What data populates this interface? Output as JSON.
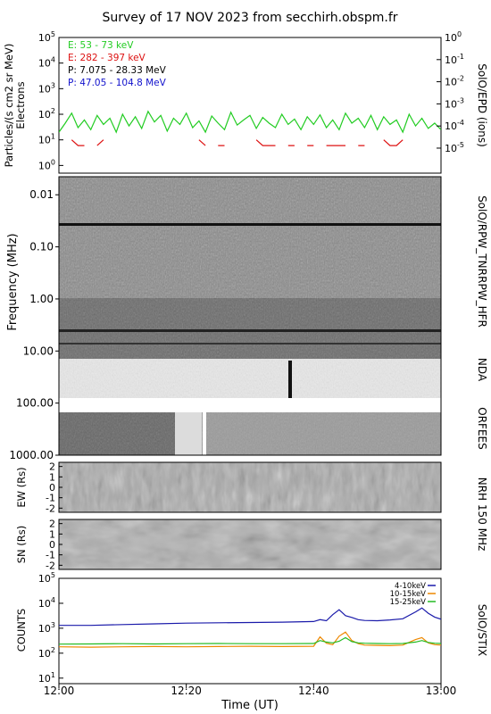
{
  "title": "Survey of 17 NOV 2023 from secchirh.obspm.fr",
  "x_axis": {
    "label": "Time (UT)",
    "range": [
      "12:00",
      "13:00"
    ],
    "ticks": [
      "12:00",
      "12:20",
      "12:40",
      "13:00"
    ]
  },
  "chart_data": [
    {
      "type": "line",
      "panel": "epd",
      "ylabel_lines": [
        "Particles/(s cm2 sr MeV)",
        "Electrons"
      ],
      "right_label": "SolO/EPD (ions)",
      "y_scale": "log",
      "ylim": [
        0.5,
        100000
      ],
      "yticks": [
        "10^0",
        "10^1",
        "10^2",
        "10^3",
        "10^4",
        "10^5"
      ],
      "right_scale": "log",
      "right_ylim": [
        7.4e-07,
        1
      ],
      "right_yticks": [
        "10^-5",
        "10^-4",
        "10^-3",
        "10^-2",
        "10^-1",
        "10^0"
      ],
      "legend": [
        {
          "label": "E: 53 - 73 keV",
          "color": "#22cc22"
        },
        {
          "label": "E: 282 - 397 keV",
          "color": "#dd1111"
        },
        {
          "label": "P: 7.075 - 28.33 MeV",
          "color": "#000000"
        },
        {
          "label": "P: 47.05 - 104.8 MeV",
          "color": "#1111cc"
        }
      ],
      "series": [
        {
          "name": "E: 53 - 73 keV",
          "color": "#22cc22",
          "x_minutes": [
            0,
            1,
            2,
            3,
            4,
            5,
            6,
            7,
            8,
            9,
            10,
            11,
            12,
            13,
            14,
            15,
            16,
            17,
            18,
            19,
            20,
            21,
            22,
            23,
            24,
            25,
            26,
            27,
            28,
            29,
            30,
            31,
            32,
            33,
            34,
            35,
            36,
            37,
            38,
            39,
            40,
            41,
            42,
            43,
            44,
            45,
            46,
            47,
            48,
            49,
            50,
            51,
            52,
            53,
            54,
            55,
            56,
            57,
            58,
            59,
            60
          ],
          "values": [
            20,
            45,
            110,
            30,
            60,
            25,
            90,
            40,
            70,
            20,
            100,
            35,
            80,
            28,
            130,
            50,
            90,
            22,
            70,
            40,
            110,
            30,
            55,
            20,
            85,
            45,
            25,
            120,
            38,
            60,
            90,
            28,
            75,
            45,
            30,
            100,
            40,
            65,
            25,
            80,
            40,
            95,
            30,
            60,
            25,
            110,
            45,
            70,
            30,
            90,
            25,
            80,
            40,
            60,
            20,
            100,
            35,
            70,
            28,
            45,
            25
          ]
        },
        {
          "name": "E: 282 - 397 keV",
          "color": "#dd1111",
          "x_minutes": [
            2,
            3,
            4,
            6,
            7,
            22,
            23,
            25,
            26,
            31,
            32,
            33,
            34,
            36,
            37,
            39,
            40,
            42,
            43,
            44,
            45,
            47,
            48,
            51,
            52,
            53,
            54,
            56,
            57,
            58
          ],
          "values": [
            10,
            6,
            6,
            6,
            10,
            10,
            6,
            6,
            6,
            10,
            6,
            6,
            6,
            6,
            6,
            6,
            6,
            6,
            6,
            6,
            6,
            6,
            6,
            10,
            6,
            6,
            10,
            null,
            null,
            null
          ]
        }
      ]
    },
    {
      "type": "heatmap",
      "panel": "radio-spectrum",
      "ylabel": "Frequency (MHz)",
      "y_scale": "log",
      "ylim": [
        0.0045,
        1000
      ],
      "yticks": [
        "0.01",
        "0.10",
        "1.00",
        "10.00",
        "100.00",
        "1000.00"
      ],
      "right_labels": [
        "SolO/RPW_TNR",
        "RPW_HFR",
        "NDA",
        "ORFEES"
      ],
      "features": [
        {
          "band": "SolO/RPW_TNR",
          "freq_mhz": 0.033,
          "start": "12:00",
          "end": "13:00",
          "note": "persistent dark line"
        },
        {
          "band": "NDA",
          "freq_mhz": 25,
          "time": "12:36",
          "note": "dark vertical spike"
        },
        {
          "band": "ORFEES",
          "time": "12:23",
          "note": "white data gap"
        }
      ]
    },
    {
      "type": "heatmap",
      "panel": "nrh-ew",
      "ylabel": "EW (Rs)",
      "right_label": "NRH 150 MHz",
      "ylim": [
        -2.4,
        2.4
      ],
      "yticks": [
        "-2",
        "-1",
        "0",
        "1",
        "2"
      ]
    },
    {
      "type": "heatmap",
      "panel": "nrh-sn",
      "ylabel": "SN (Rs)",
      "ylim": [
        -2.4,
        2.4
      ],
      "yticks": [
        "-2",
        "-1",
        "0",
        "1",
        "2"
      ]
    },
    {
      "type": "line",
      "panel": "stix",
      "ylabel": "COUNTS",
      "right_label": "SolO/STIX",
      "y_scale": "log",
      "ylim": [
        6,
        100000
      ],
      "yticks": [
        "10^1",
        "10^2",
        "10^3",
        "10^4",
        "10^5"
      ],
      "legend": [
        {
          "label": "4-10keV",
          "color": "#1a1aaa"
        },
        {
          "label": "10-15keV",
          "color": "#ee8800"
        },
        {
          "label": "15-25keV",
          "color": "#22bb22"
        }
      ],
      "series": [
        {
          "name": "4-10keV",
          "color": "#1a1aaa",
          "x_minutes": [
            0,
            5,
            10,
            15,
            20,
            25,
            30,
            35,
            40,
            41,
            42,
            43,
            44,
            45,
            46,
            47,
            48,
            50,
            52,
            54,
            56,
            57,
            58,
            59,
            60
          ],
          "values": [
            1300,
            1300,
            1400,
            1500,
            1600,
            1650,
            1700,
            1750,
            1850,
            2200,
            2000,
            3500,
            5500,
            3200,
            2700,
            2200,
            2050,
            2000,
            2150,
            2400,
            4500,
            6500,
            4000,
            2800,
            2300
          ]
        },
        {
          "name": "10-15keV",
          "color": "#ee8800",
          "x_minutes": [
            0,
            5,
            10,
            15,
            20,
            25,
            30,
            35,
            40,
            41,
            42,
            43,
            44,
            45,
            46,
            47,
            48,
            50,
            52,
            54,
            56,
            57,
            58,
            59,
            60
          ],
          "values": [
            180,
            175,
            180,
            185,
            180,
            185,
            190,
            185,
            190,
            450,
            250,
            220,
            480,
            700,
            320,
            240,
            210,
            205,
            200,
            210,
            350,
            420,
            260,
            220,
            210
          ]
        },
        {
          "name": "15-25keV",
          "color": "#22bb22",
          "x_minutes": [
            0,
            5,
            10,
            15,
            20,
            25,
            30,
            35,
            40,
            41,
            42,
            43,
            44,
            45,
            46,
            47,
            48,
            50,
            52,
            54,
            56,
            57,
            58,
            59,
            60
          ],
          "values": [
            230,
            235,
            240,
            235,
            240,
            245,
            240,
            240,
            245,
            320,
            280,
            260,
            300,
            420,
            290,
            260,
            250,
            245,
            240,
            245,
            280,
            320,
            270,
            250,
            245
          ]
        }
      ]
    }
  ]
}
